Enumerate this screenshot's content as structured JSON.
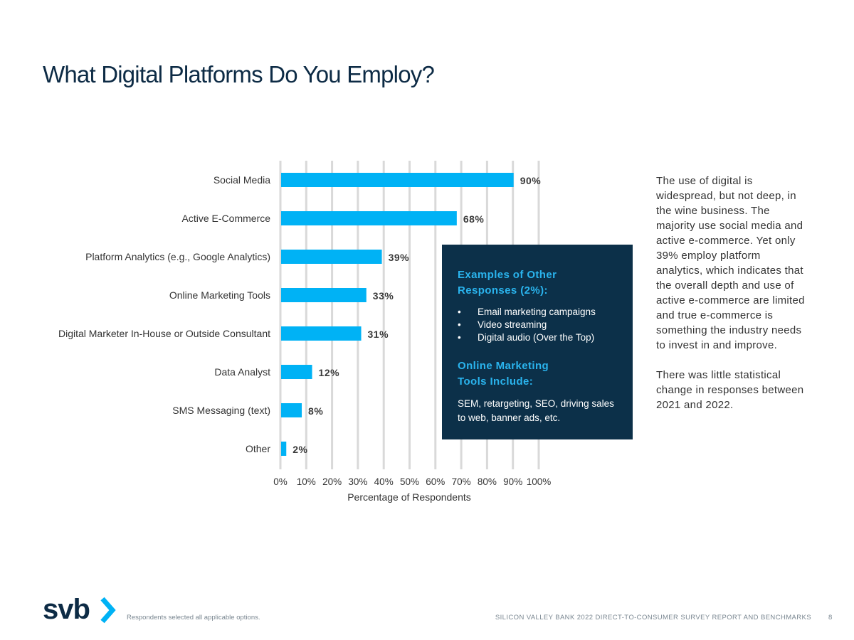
{
  "slide": {
    "title": "What Digital Platforms Do You Employ?",
    "footnote": "Respondents selected all applicable options.",
    "footer": "SILICON VALLEY BANK 2022 DIRECT-TO-CONSUMER SURVEY REPORT AND BENCHMARKS",
    "page_number": "8",
    "logo_text": "svb"
  },
  "chart_data": {
    "type": "bar",
    "orientation": "horizontal",
    "title": "",
    "categories": [
      "Social Media",
      "Active E-Commerce",
      "Platform Analytics (e.g., Google Analytics)",
      "Online Marketing Tools",
      "Digital Marketer In-House or Outside Consultant",
      "Data Analyst",
      "SMS Messaging (text)",
      "Other"
    ],
    "values": [
      90,
      68,
      39,
      33,
      31,
      12,
      8,
      2
    ],
    "value_labels": [
      "90%",
      "68%",
      "39%",
      "33%",
      "31%",
      "12%",
      "8%",
      "2%"
    ],
    "xlabel": "Percentage of Respondents",
    "xlim": [
      0,
      100
    ],
    "x_ticks": [
      "0%",
      "10%",
      "20%",
      "30%",
      "40%",
      "50%",
      "60%",
      "70%",
      "80%",
      "90%",
      "100%"
    ],
    "grid": true,
    "bar_color": "#00b2f5",
    "legend": "none"
  },
  "callout": {
    "heading1": "Examples of Other Responses (2%):",
    "items": [
      "Email marketing campaigns",
      "Video streaming",
      "Digital audio (Over the Top)"
    ],
    "heading2": "Online Marketing Tools Include:",
    "text": "SEM, retargeting, SEO, driving sales to web, banner ads, etc."
  },
  "side_text": {
    "p1": "The use of digital is widespread, but not deep, in the wine business. The majority use social media and active e-commerce. Yet only 39% employ platform analytics, which indicates that the overall depth and use of active e-commerce are limited and true e-commerce is something the industry needs to invest in and improve.",
    "p2": "There was little statistical change in responses between 2021 and 2022."
  },
  "colors": {
    "title": "#0d2b45",
    "callout_bg": "#0c3049",
    "callout_heading": "#2ab4ee",
    "logo": "#0d2b45",
    "logo_accent": "#00b2f5"
  }
}
